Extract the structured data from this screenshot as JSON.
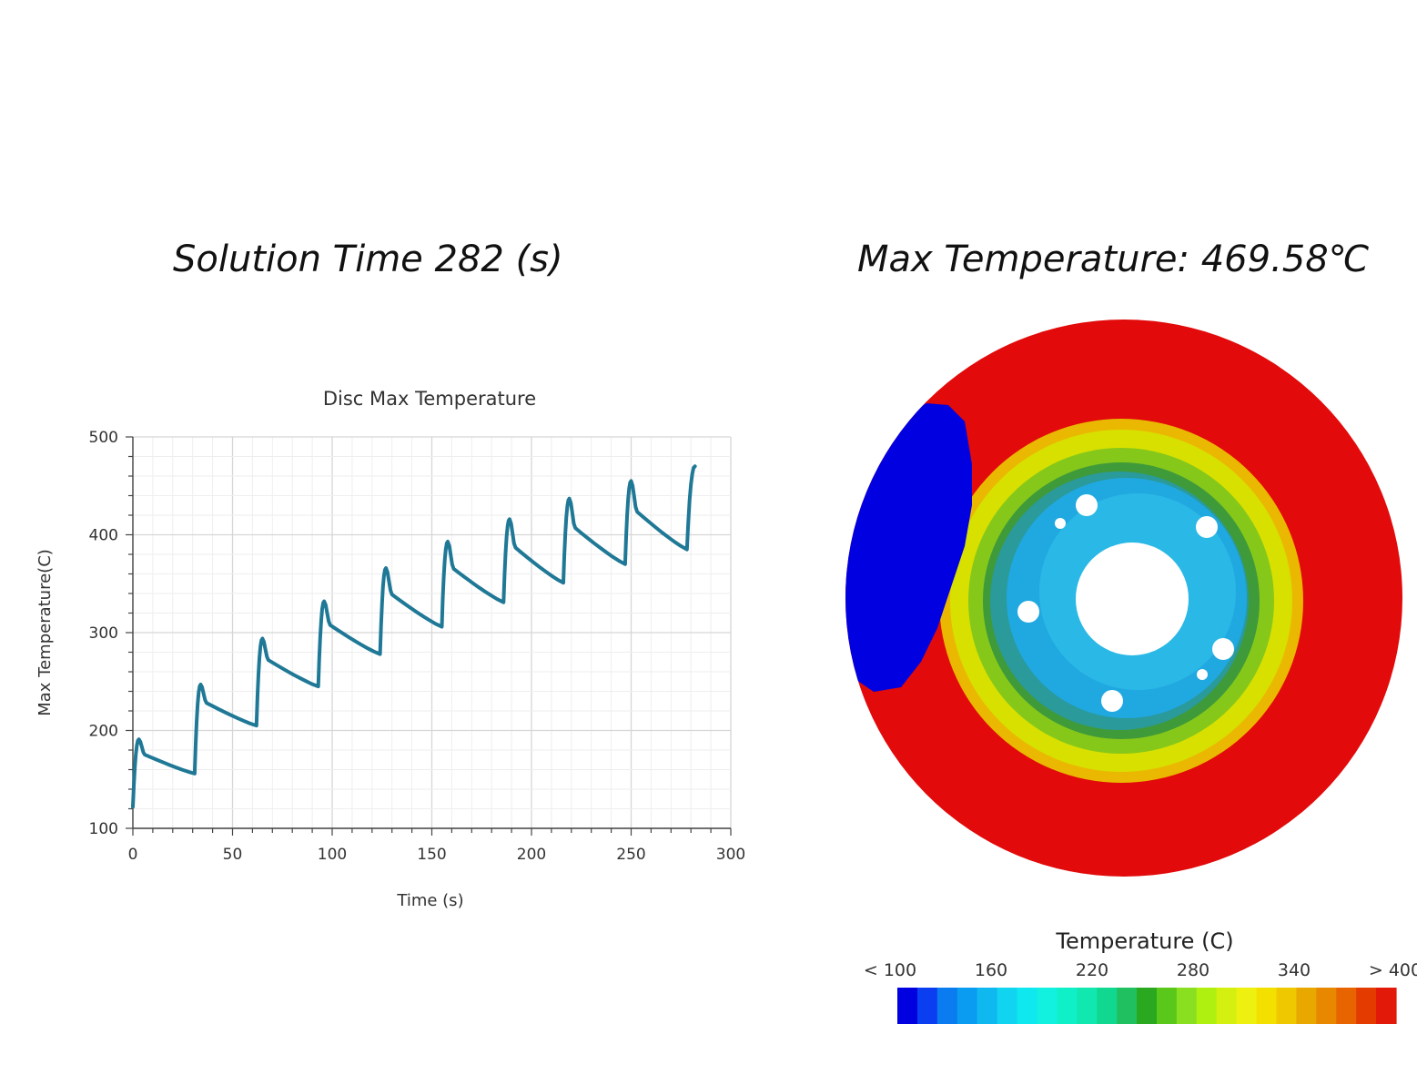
{
  "headings": {
    "solution_time": "Solution Time 282 (s)",
    "max_temperature": "Max Temperature: 469.58℃"
  },
  "chart_data": {
    "type": "line",
    "title": "Disc Max Temperature",
    "xlabel": "Time (s)",
    "ylabel": "Max Temperature(C)",
    "xlim": [
      0,
      300
    ],
    "ylim": [
      100,
      500
    ],
    "xticks": [
      0,
      50,
      100,
      150,
      200,
      250,
      300
    ],
    "yticks": [
      100,
      200,
      300,
      400,
      500
    ],
    "grid": true,
    "series": [
      {
        "name": "Disc Max Temperature",
        "color": "#1f7896",
        "cycles": [
          {
            "start": 0,
            "start_value": 122,
            "peak_time": 3,
            "peak_value": 191,
            "end": 31,
            "end_value": 156
          },
          {
            "start": 31,
            "start_value": 156,
            "peak_time": 34,
            "peak_value": 247,
            "end": 62,
            "end_value": 205
          },
          {
            "start": 62,
            "start_value": 205,
            "peak_time": 65,
            "peak_value": 294,
            "end": 93,
            "end_value": 245
          },
          {
            "start": 93,
            "start_value": 245,
            "peak_time": 96,
            "peak_value": 332,
            "end": 124,
            "end_value": 278
          },
          {
            "start": 124,
            "start_value": 278,
            "peak_time": 127,
            "peak_value": 366,
            "end": 155,
            "end_value": 306
          },
          {
            "start": 155,
            "start_value": 306,
            "peak_time": 158,
            "peak_value": 393,
            "end": 186,
            "end_value": 331
          },
          {
            "start": 186,
            "start_value": 331,
            "peak_time": 189,
            "peak_value": 416,
            "end": 216,
            "end_value": 351
          },
          {
            "start": 216,
            "start_value": 351,
            "peak_time": 219,
            "peak_value": 437,
            "end": 247,
            "end_value": 370
          },
          {
            "start": 247,
            "start_value": 370,
            "peak_time": 250,
            "peak_value": 455,
            "end": 278,
            "end_value": 385
          },
          {
            "start": 278,
            "start_value": 385,
            "peak_time": 282,
            "peak_value": 470,
            "end": 282,
            "end_value": 470
          }
        ]
      }
    ]
  },
  "disc_view": {
    "colors": {
      "rim": "#e20a0a",
      "pad": "#0000e0",
      "band_outer": "#eab800",
      "band_yellow": "#d8e000",
      "band_green": "#86c81a",
      "band_dark_green": "#3f9a3a",
      "hat_edge": "#2a9a9a",
      "hat": "#20a8e0",
      "hat_light": "#40d8f0",
      "hole": "#ffffff"
    }
  },
  "legend": {
    "title": "Temperature (C)",
    "ticks": [
      "< 100",
      "160",
      "220",
      "280",
      "340",
      "> 400"
    ],
    "min": 100,
    "max": 400,
    "colors": [
      "#0000e0",
      "#0a3ef0",
      "#0a7cf0",
      "#0a9cf0",
      "#10b8f0",
      "#10d4f0",
      "#10e8f0",
      "#12f0e0",
      "#10f0c8",
      "#10e8b0",
      "#10d890",
      "#20c060",
      "#2aa820",
      "#5ac81a",
      "#8ae020",
      "#b0f010",
      "#d4f010",
      "#eef010",
      "#f4e000",
      "#f0c800",
      "#e8a800",
      "#e88800",
      "#e86400",
      "#e43c00",
      "#e21808"
    ]
  }
}
